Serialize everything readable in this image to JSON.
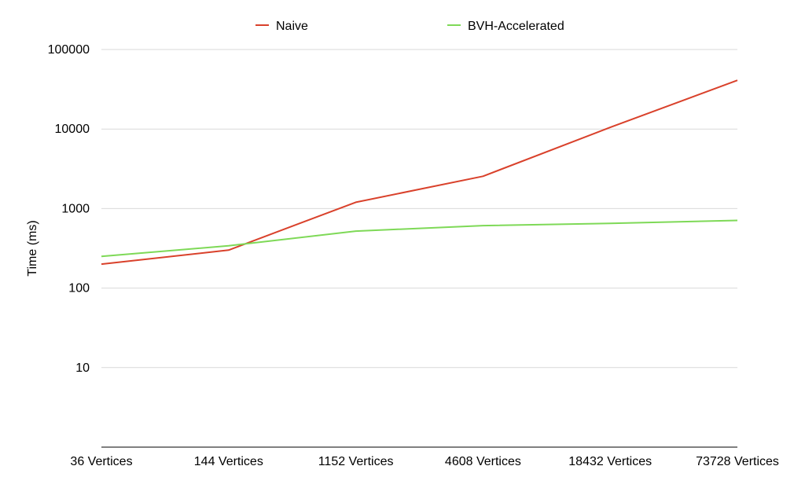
{
  "chart_data": {
    "type": "line",
    "title": "",
    "xlabel": "",
    "ylabel": "Time (ms)",
    "yscale": "log",
    "ylim": [
      1,
      100000
    ],
    "yticks": [
      "10",
      "100",
      "1000",
      "10000",
      "100000"
    ],
    "ytick_values": [
      10,
      100,
      1000,
      10000,
      100000
    ],
    "categories": [
      "36 Vertices",
      "144 Vertices",
      "1152 Vertices",
      "4608 Vertices",
      "18432 Vertices",
      "73728 Vertices"
    ],
    "grid": true,
    "legend_position": "top",
    "series": [
      {
        "name": "Naive",
        "color": "#d9412b",
        "values": [
          200,
          300,
          1200,
          2550,
          10500,
          41000
        ]
      },
      {
        "name": "BVH-Accelerated",
        "color": "#7ed957",
        "values": [
          250,
          340,
          520,
          610,
          650,
          710
        ]
      }
    ]
  }
}
